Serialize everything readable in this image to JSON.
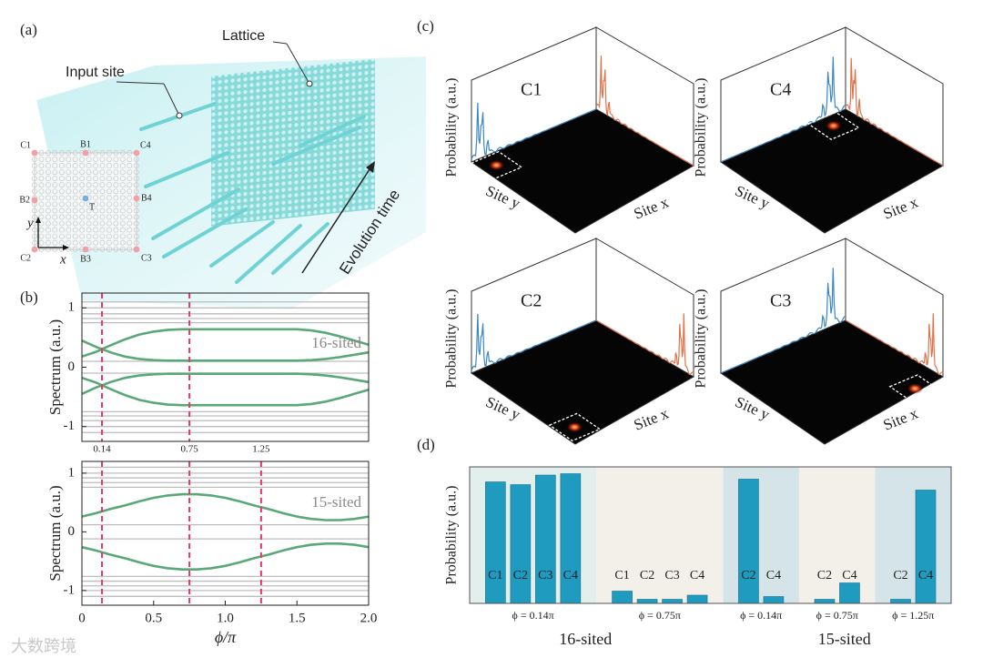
{
  "panel_labels": {
    "a": "(a)",
    "b": "(b)",
    "c": "(c)",
    "d": "(d)"
  },
  "illustration": {
    "lattice": "Lattice",
    "input_site": "Input site",
    "evolution_time": "Evolution time",
    "inset": {
      "sites": [
        "C1",
        "B1",
        "C4",
        "B2",
        "T",
        "B4",
        "C2",
        "B3",
        "C3"
      ],
      "x_axis": "x",
      "y_axis": "y"
    }
  },
  "panel_c": {
    "plots": [
      "C1",
      "C4",
      "C2",
      "C3"
    ],
    "z_label": "Probability (a.u.)",
    "site_y": "Site y",
    "site_x": "Site x"
  },
  "chart_data": [
    {
      "type": "line",
      "ylabel": "Spectrum (a.u.)",
      "annotation": "16-sited",
      "x": [
        0,
        0.1,
        0.2,
        0.3,
        0.4,
        0.5,
        0.6,
        0.7,
        0.8,
        0.9,
        1.0,
        1.1,
        1.2,
        1.3,
        1.4,
        1.5,
        1.6,
        1.7,
        1.8,
        1.9,
        2.0
      ],
      "series": [
        {
          "color": "#5aa878",
          "values": [
            0.18,
            0.26,
            0.37,
            0.47,
            0.55,
            0.6,
            0.63,
            0.64,
            0.64,
            0.64,
            0.64,
            0.64,
            0.64,
            0.64,
            0.64,
            0.64,
            0.62,
            0.58,
            0.52,
            0.45,
            0.38
          ]
        },
        {
          "color": "#5aa878",
          "values": [
            0.45,
            0.34,
            0.25,
            0.18,
            0.14,
            0.12,
            0.11,
            0.11,
            0.11,
            0.11,
            0.11,
            0.11,
            0.11,
            0.11,
            0.11,
            0.11,
            0.12,
            0.14,
            0.17,
            0.21,
            0.25
          ]
        },
        {
          "color": "#5aa878",
          "values": [
            -0.18,
            -0.26,
            -0.37,
            -0.47,
            -0.55,
            -0.6,
            -0.63,
            -0.64,
            -0.64,
            -0.64,
            -0.64,
            -0.64,
            -0.64,
            -0.64,
            -0.64,
            -0.64,
            -0.62,
            -0.58,
            -0.52,
            -0.45,
            -0.38
          ]
        },
        {
          "color": "#5aa878",
          "values": [
            -0.45,
            -0.34,
            -0.25,
            -0.18,
            -0.14,
            -0.12,
            -0.11,
            -0.11,
            -0.11,
            -0.11,
            -0.11,
            -0.11,
            -0.11,
            -0.11,
            -0.11,
            -0.11,
            -0.12,
            -0.14,
            -0.17,
            -0.21,
            -0.25
          ]
        }
      ],
      "levels": {
        "color": "#bdbdbd",
        "values": [
          1.1,
          1.0,
          0.9,
          0.82,
          0.75,
          0.1,
          -0.1,
          -0.75,
          -0.82,
          -0.9,
          -1.0,
          -1.1
        ]
      },
      "vlines": {
        "color": "#e8336d",
        "values": [
          0.14,
          0.75
        ]
      },
      "xlim": [
        0,
        2
      ],
      "ylim": [
        -1.25,
        1.25
      ],
      "yticks": [
        -1,
        0,
        1
      ]
    },
    {
      "type": "line",
      "ylabel": "Spectrum (a.u.)",
      "xlabel": "ϕ/π",
      "annotation": "15-sited",
      "x": [
        0,
        0.1,
        0.2,
        0.3,
        0.4,
        0.5,
        0.6,
        0.7,
        0.8,
        0.9,
        1.0,
        1.1,
        1.2,
        1.3,
        1.4,
        1.5,
        1.6,
        1.7,
        1.8,
        1.9,
        2.0
      ],
      "series": [
        {
          "color": "#5aa878",
          "values": [
            0.26,
            0.32,
            0.39,
            0.45,
            0.52,
            0.58,
            0.62,
            0.64,
            0.64,
            0.62,
            0.58,
            0.52,
            0.45,
            0.39,
            0.32,
            0.26,
            0.22,
            0.2,
            0.2,
            0.22,
            0.26
          ]
        },
        {
          "color": "#5aa878",
          "values": [
            -0.26,
            -0.32,
            -0.39,
            -0.45,
            -0.52,
            -0.58,
            -0.62,
            -0.64,
            -0.64,
            -0.62,
            -0.58,
            -0.52,
            -0.45,
            -0.39,
            -0.32,
            -0.26,
            -0.22,
            -0.2,
            -0.2,
            -0.22,
            -0.26
          ]
        }
      ],
      "levels": {
        "color": "#bdbdbd",
        "values": [
          1.1,
          1.0,
          0.92,
          0.84,
          0.76,
          0.12,
          -0.12,
          -0.76,
          -0.84,
          -0.92,
          -1.0,
          -1.1
        ]
      },
      "vlines": {
        "color": "#e8336d",
        "values": [
          {
            "value": 0.14,
            "label": "0.14"
          },
          {
            "value": 0.75,
            "label": "0.75"
          },
          {
            "value": 1.25,
            "label": "1.25"
          }
        ]
      },
      "xlim": [
        0,
        2
      ],
      "ylim": [
        -1.25,
        1.2
      ],
      "xticks": [
        0,
        0.5,
        {
          "value": 1,
          "label": "1.0"
        },
        1.5,
        {
          "value": 2,
          "label": "2.0"
        }
      ],
      "yticks": [
        -1,
        0,
        1
      ]
    },
    {
      "type": "grouped-bar",
      "ylabel": "Probability (a.u.)",
      "ylim": [
        0,
        1
      ],
      "color": "#1f9bbf",
      "sections": [
        {
          "label": "16-sited",
          "groups": [
            {
              "label": "ϕ = 0.14π",
              "background": "#e3efec",
              "categories": [
                "C1",
                "C2",
                "C3",
                "C4"
              ],
              "values": [
                0.89,
                0.87,
                0.94,
                0.95
              ]
            },
            {
              "label": "ϕ = 0.75π",
              "background": "#f3efe9",
              "categories": [
                "C1",
                "C2",
                "C3",
                "C4"
              ],
              "values": [
                0.09,
                0.03,
                0.03,
                0.06
              ]
            }
          ]
        },
        {
          "label": "15-sited",
          "groups": [
            {
              "label": "ϕ = 0.14π",
              "background": "#d5e4e8",
              "categories": [
                "C2",
                "C4"
              ],
              "values": [
                0.91,
                0.05
              ]
            },
            {
              "label": "ϕ = 0.75π",
              "background": "#f3efe9",
              "categories": [
                "C2",
                "C4"
              ],
              "values": [
                0.03,
                0.15
              ]
            },
            {
              "label": "ϕ = 1.25π",
              "background": "#d5e4e8",
              "categories": [
                "C2",
                "C4"
              ],
              "values": [
                0.03,
                0.83
              ]
            }
          ]
        }
      ]
    }
  ],
  "watermark": "大数跨境"
}
